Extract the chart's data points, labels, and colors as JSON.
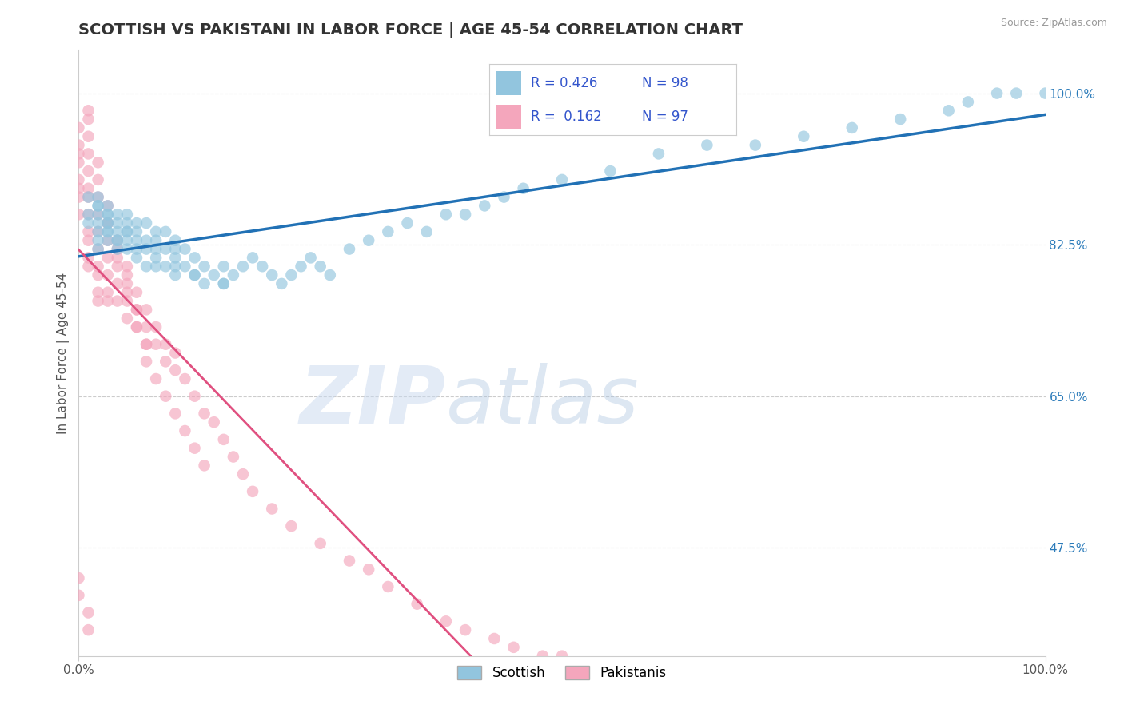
{
  "title": "SCOTTISH VS PAKISTANI IN LABOR FORCE | AGE 45-54 CORRELATION CHART",
  "source_text": "Source: ZipAtlas.com",
  "ylabel": "In Labor Force | Age 45-54",
  "xlim": [
    0.0,
    1.0
  ],
  "ylim": [
    0.35,
    1.05
  ],
  "x_tick_labels": [
    "0.0%",
    "100.0%"
  ],
  "x_tick_pos": [
    0.0,
    1.0
  ],
  "y_tick_labels_right": [
    "47.5%",
    "65.0%",
    "82.5%",
    "100.0%"
  ],
  "y_tick_values_right": [
    0.475,
    0.65,
    0.825,
    1.0
  ],
  "legend_labels": [
    "Scottish",
    "Pakistanis"
  ],
  "legend_R": [
    0.426,
    0.162
  ],
  "legend_N": [
    98,
    97
  ],
  "scatter_color_blue": "#92c5de",
  "scatter_color_pink": "#f4a6bc",
  "line_color_blue": "#2171b5",
  "line_color_pink": "#e05080",
  "title_color": "#333333",
  "title_fontsize": 14,
  "label_fontsize": 11,
  "tick_fontsize": 11,
  "source_color": "#999999",
  "watermark_color": "#d0dff0",
  "legend_text_color": "#3355cc",
  "blue_scatter_x": [
    0.01,
    0.01,
    0.01,
    0.02,
    0.02,
    0.02,
    0.02,
    0.02,
    0.02,
    0.02,
    0.03,
    0.03,
    0.03,
    0.03,
    0.03,
    0.03,
    0.03,
    0.04,
    0.04,
    0.04,
    0.04,
    0.04,
    0.05,
    0.05,
    0.05,
    0.05,
    0.05,
    0.06,
    0.06,
    0.06,
    0.06,
    0.07,
    0.07,
    0.07,
    0.07,
    0.08,
    0.08,
    0.08,
    0.08,
    0.09,
    0.09,
    0.09,
    0.1,
    0.1,
    0.1,
    0.1,
    0.11,
    0.11,
    0.12,
    0.12,
    0.13,
    0.13,
    0.14,
    0.15,
    0.15,
    0.16,
    0.17,
    0.18,
    0.19,
    0.2,
    0.21,
    0.22,
    0.23,
    0.24,
    0.25,
    0.26,
    0.28,
    0.3,
    0.32,
    0.34,
    0.36,
    0.38,
    0.4,
    0.42,
    0.44,
    0.46,
    0.5,
    0.55,
    0.6,
    0.65,
    0.7,
    0.75,
    0.8,
    0.85,
    0.9,
    0.92,
    0.95,
    0.97,
    1.0,
    0.02,
    0.03,
    0.04,
    0.05,
    0.06,
    0.08,
    0.1,
    0.12,
    0.15
  ],
  "blue_scatter_y": [
    0.86,
    0.88,
    0.85,
    0.84,
    0.87,
    0.83,
    0.86,
    0.88,
    0.85,
    0.82,
    0.86,
    0.84,
    0.87,
    0.85,
    0.83,
    0.86,
    0.84,
    0.85,
    0.83,
    0.86,
    0.84,
    0.82,
    0.85,
    0.83,
    0.86,
    0.84,
    0.82,
    0.85,
    0.83,
    0.81,
    0.84,
    0.83,
    0.85,
    0.82,
    0.8,
    0.84,
    0.82,
    0.8,
    0.83,
    0.82,
    0.84,
    0.8,
    0.83,
    0.81,
    0.79,
    0.82,
    0.8,
    0.82,
    0.81,
    0.79,
    0.8,
    0.78,
    0.79,
    0.8,
    0.78,
    0.79,
    0.8,
    0.81,
    0.8,
    0.79,
    0.78,
    0.79,
    0.8,
    0.81,
    0.8,
    0.79,
    0.82,
    0.83,
    0.84,
    0.85,
    0.84,
    0.86,
    0.86,
    0.87,
    0.88,
    0.89,
    0.9,
    0.91,
    0.93,
    0.94,
    0.94,
    0.95,
    0.96,
    0.97,
    0.98,
    0.99,
    1.0,
    1.0,
    1.0,
    0.87,
    0.85,
    0.83,
    0.84,
    0.82,
    0.81,
    0.8,
    0.79,
    0.78
  ],
  "pink_scatter_x": [
    0.0,
    0.0,
    0.0,
    0.0,
    0.0,
    0.0,
    0.0,
    0.0,
    0.01,
    0.01,
    0.01,
    0.01,
    0.01,
    0.01,
    0.01,
    0.01,
    0.01,
    0.01,
    0.02,
    0.02,
    0.02,
    0.02,
    0.02,
    0.02,
    0.02,
    0.02,
    0.03,
    0.03,
    0.03,
    0.03,
    0.03,
    0.03,
    0.04,
    0.04,
    0.04,
    0.04,
    0.05,
    0.05,
    0.05,
    0.05,
    0.06,
    0.06,
    0.06,
    0.07,
    0.07,
    0.07,
    0.08,
    0.08,
    0.09,
    0.09,
    0.1,
    0.1,
    0.11,
    0.12,
    0.13,
    0.14,
    0.15,
    0.16,
    0.17,
    0.18,
    0.2,
    0.22,
    0.25,
    0.28,
    0.3,
    0.32,
    0.35,
    0.38,
    0.4,
    0.43,
    0.45,
    0.48,
    0.5,
    0.01,
    0.01,
    0.02,
    0.02,
    0.03,
    0.03,
    0.04,
    0.04,
    0.05,
    0.05,
    0.06,
    0.06,
    0.07,
    0.07,
    0.08,
    0.09,
    0.1,
    0.11,
    0.12,
    0.13,
    0.0,
    0.0,
    0.01,
    0.01
  ],
  "pink_scatter_y": [
    0.96,
    0.94,
    0.93,
    0.92,
    0.9,
    0.89,
    0.88,
    0.86,
    0.95,
    0.93,
    0.91,
    0.89,
    0.88,
    0.86,
    0.84,
    0.83,
    0.81,
    0.8,
    0.88,
    0.86,
    0.84,
    0.82,
    0.8,
    0.79,
    0.77,
    0.76,
    0.85,
    0.83,
    0.81,
    0.79,
    0.77,
    0.76,
    0.82,
    0.8,
    0.78,
    0.76,
    0.8,
    0.78,
    0.76,
    0.74,
    0.77,
    0.75,
    0.73,
    0.75,
    0.73,
    0.71,
    0.73,
    0.71,
    0.71,
    0.69,
    0.7,
    0.68,
    0.67,
    0.65,
    0.63,
    0.62,
    0.6,
    0.58,
    0.56,
    0.54,
    0.52,
    0.5,
    0.48,
    0.46,
    0.45,
    0.43,
    0.41,
    0.39,
    0.38,
    0.37,
    0.36,
    0.35,
    0.35,
    0.98,
    0.97,
    0.92,
    0.9,
    0.87,
    0.85,
    0.83,
    0.81,
    0.79,
    0.77,
    0.75,
    0.73,
    0.71,
    0.69,
    0.67,
    0.65,
    0.63,
    0.61,
    0.59,
    0.57,
    0.44,
    0.42,
    0.4,
    0.38
  ]
}
